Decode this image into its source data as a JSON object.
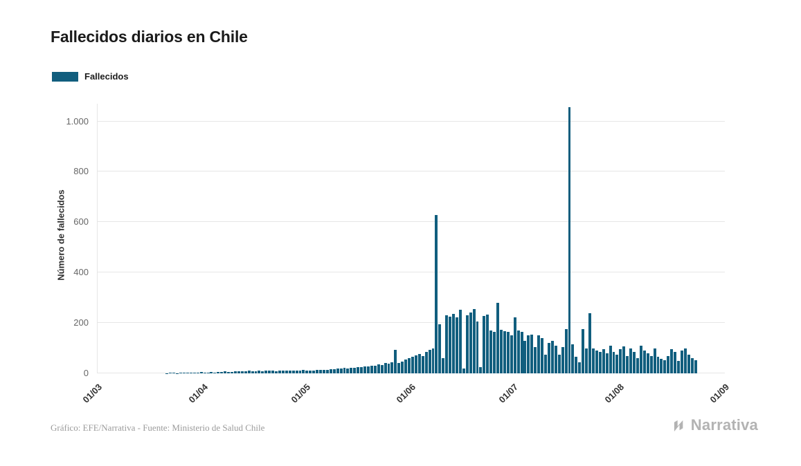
{
  "page": {
    "title": "Fallecidos diarios en Chile",
    "source_credit": "Gráfico: EFE/Narrativa - Fuente: Ministerio de Salud Chile",
    "logo_text": "Narrativa"
  },
  "legend": {
    "items": [
      {
        "label": "Fallecidos",
        "color": "#115e7e"
      }
    ]
  },
  "chart_data": {
    "type": "bar",
    "title": "Fallecidos diarios en Chile",
    "xlabel": "",
    "ylabel": "Número de fallecidos",
    "x_tick_labels": [
      "01/03",
      "01/04",
      "01/05",
      "01/06",
      "01/07",
      "01/08",
      "01/09"
    ],
    "x_tick_day_offsets": [
      0,
      31,
      61,
      92,
      122,
      153,
      184
    ],
    "x_total_days": 184,
    "y_ticks": [
      0,
      200,
      400,
      600,
      800,
      1000
    ],
    "y_tick_labels": [
      "0",
      "200",
      "400",
      "600",
      "800",
      "1.000"
    ],
    "ylim": [
      0,
      1070
    ],
    "grid": "horizontal",
    "legend_position": "top-left",
    "series": [
      {
        "name": "Fallecidos",
        "color": "#115e7e",
        "start_label": "01/03",
        "values": [
          0,
          0,
          0,
          0,
          0,
          0,
          0,
          0,
          0,
          0,
          0,
          0,
          0,
          0,
          0,
          0,
          0,
          0,
          0,
          0,
          1,
          4,
          2,
          1,
          2,
          2,
          3,
          2,
          4,
          3,
          5,
          4,
          3,
          5,
          4,
          6,
          5,
          7,
          6,
          5,
          8,
          7,
          9,
          8,
          10,
          9,
          8,
          10,
          9,
          11,
          10,
          12,
          9,
          11,
          10,
          12,
          11,
          10,
          12,
          11,
          13,
          10,
          12,
          11,
          14,
          13,
          15,
          14,
          17,
          16,
          19,
          18,
          21,
          20,
          23,
          22,
          26,
          24,
          28,
          27,
          31,
          30,
          35,
          33,
          40,
          38,
          45,
          92,
          42,
          48,
          54,
          60,
          66,
          72,
          78,
          70,
          85,
          92,
          98,
          627,
          195,
          60,
          231,
          226,
          237,
          222,
          252,
          20,
          231,
          242,
          255,
          205,
          25,
          228,
          232,
          170,
          165,
          280,
          172,
          168,
          165,
          150,
          222,
          170,
          165,
          130,
          150,
          155,
          105,
          150,
          140,
          75,
          120,
          130,
          110,
          75,
          105,
          175,
          1057,
          115,
          65,
          45,
          175,
          98,
          240,
          100,
          90,
          85,
          95,
          80,
          110,
          85,
          75,
          95,
          108,
          70,
          100,
          85,
          60,
          110,
          90,
          80,
          70,
          100,
          65,
          58,
          52,
          70,
          95,
          85,
          50,
          90,
          100,
          75,
          60,
          52
        ]
      }
    ]
  }
}
